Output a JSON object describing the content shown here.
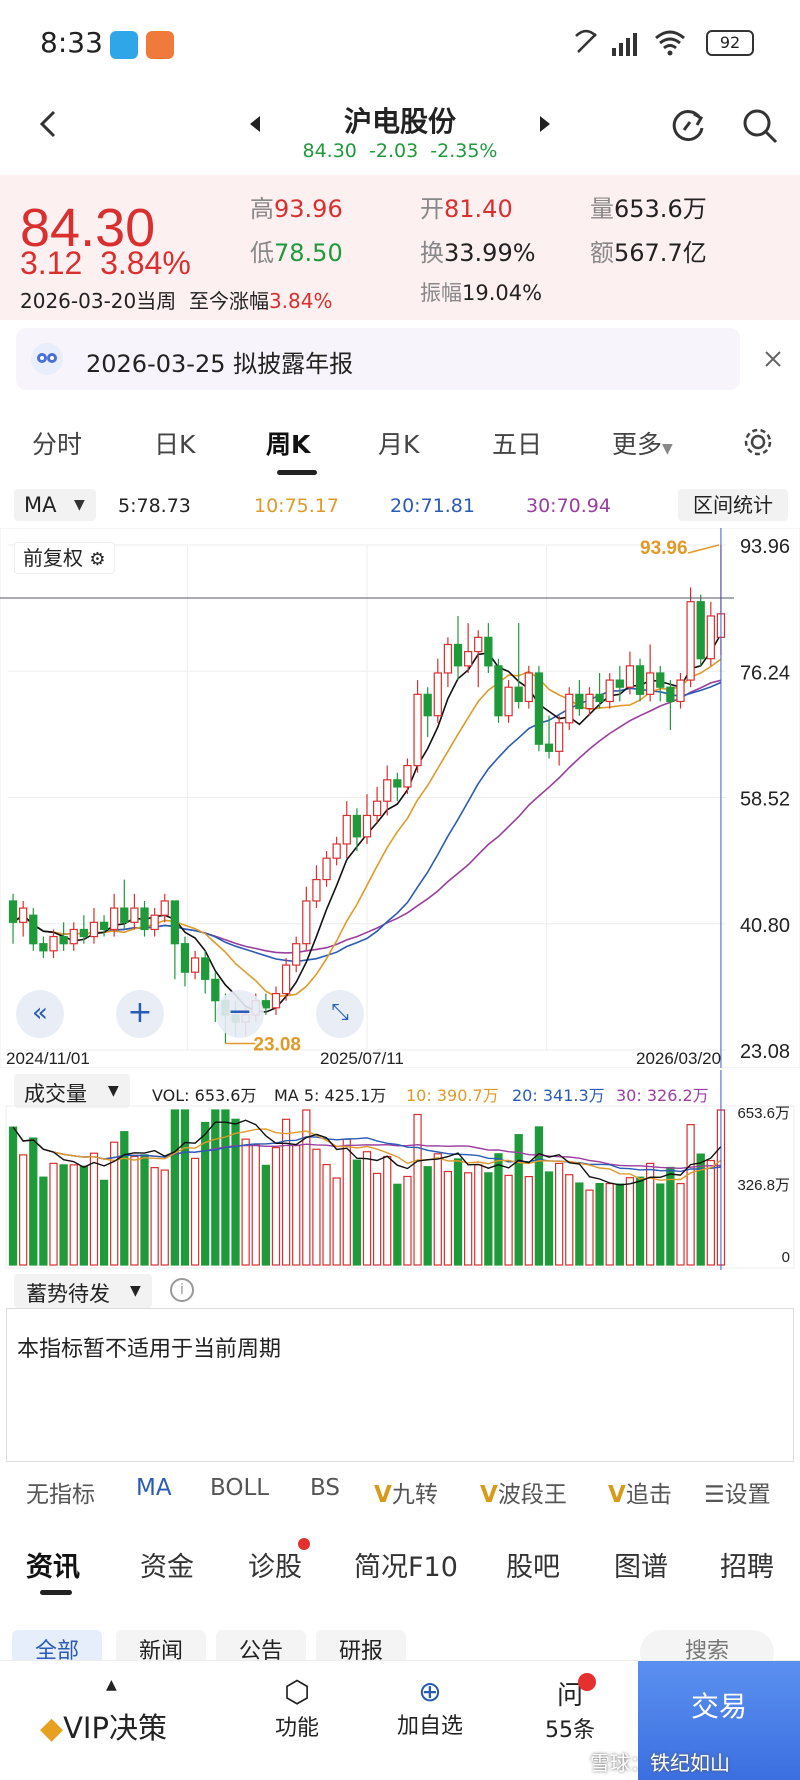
{
  "status": {
    "time": "8:33",
    "battery": "92"
  },
  "nav": {
    "title": "沪电股份",
    "price": "84.30",
    "change": "-2.03",
    "change_pct": "-2.35%"
  },
  "quote": {
    "price": "84.30",
    "change": "3.12",
    "change_pct": "3.84%",
    "period": "2026-03-20当周",
    "since_label": "至今涨幅",
    "since_value": "3.84%",
    "high_label": "高",
    "high": "93.96",
    "low_label": "低",
    "low": "78.50",
    "open_label": "开",
    "open": "81.40",
    "turnover_label": "换",
    "turnover": "33.99%",
    "amplitude_label": "振幅",
    "amplitude": "19.04%",
    "volume_label": "量",
    "volume": "653.6万",
    "amount_label": "额",
    "amount": "567.7亿"
  },
  "notice": {
    "text": "2026-03-25 拟披露年报"
  },
  "tabs": [
    "分时",
    "日K",
    "周K",
    "月K",
    "五日",
    "更多"
  ],
  "ma": {
    "label": "MA",
    "ma5": "5:78.73",
    "ma10": "10:75.17",
    "ma20": "20:71.81",
    "ma30": "30:70.94",
    "range_stats": "区间统计"
  },
  "chart": {
    "adjust": "前复权",
    "y_ticks": [
      "93.96",
      "76.24",
      "58.52",
      "40.80",
      "23.08"
    ],
    "x_ticks": [
      "2024/11/01",
      "2025/07/11",
      "2026/03/20"
    ],
    "max_label": "93.96",
    "min_label": "23.08"
  },
  "volume": {
    "label": "成交量",
    "vol": "VOL: 653.6万",
    "ma5": "MA 5: 425.1万",
    "ma10": "10: 390.7万",
    "ma20": "20: 341.3万",
    "ma30": "30: 326.2万",
    "y_ticks": [
      "653.6万",
      "326.8万",
      "0"
    ]
  },
  "indicator": {
    "label": "蓄势待发",
    "message": "本指标暂不适用于当前周期"
  },
  "indicator_tabs": [
    "无指标",
    "MA",
    "BOLL",
    "BS",
    "九转",
    "波段王",
    "追击",
    "设置"
  ],
  "info_tabs": [
    "资讯",
    "资金",
    "诊股",
    "简况F10",
    "股吧",
    "图谱",
    "招聘"
  ],
  "sub_tabs": [
    "全部",
    "新闻",
    "公告",
    "研报",
    "搜索"
  ],
  "bottom": {
    "vip": "VIP决策",
    "func": "功能",
    "watch": "加自选",
    "ask": "55条",
    "trade": "交易",
    "watermark": "雪球：铁纪如山"
  },
  "chart_data": {
    "type": "candlestick",
    "x_range": [
      "2024/11/01",
      "2026/03/20"
    ],
    "ylim": [
      23.08,
      93.96
    ],
    "candles": [
      {
        "o": 44,
        "c": 41,
        "h": 45,
        "l": 38
      },
      {
        "o": 41,
        "c": 43,
        "h": 44,
        "l": 39
      },
      {
        "o": 42,
        "c": 38,
        "h": 43,
        "l": 37
      },
      {
        "o": 38,
        "c": 37,
        "h": 39,
        "l": 36
      },
      {
        "o": 37,
        "c": 39,
        "h": 40,
        "l": 36
      },
      {
        "o": 39,
        "c": 38,
        "h": 41,
        "l": 37
      },
      {
        "o": 38,
        "c": 40,
        "h": 41,
        "l": 37
      },
      {
        "o": 40,
        "c": 39,
        "h": 42,
        "l": 38
      },
      {
        "o": 39,
        "c": 41,
        "h": 43,
        "l": 38
      },
      {
        "o": 41,
        "c": 40,
        "h": 42,
        "l": 39
      },
      {
        "o": 40,
        "c": 43,
        "h": 45,
        "l": 39
      },
      {
        "o": 43,
        "c": 41,
        "h": 47,
        "l": 40
      },
      {
        "o": 41,
        "c": 43,
        "h": 45,
        "l": 40
      },
      {
        "o": 43,
        "c": 40,
        "h": 44,
        "l": 39
      },
      {
        "o": 40,
        "c": 42,
        "h": 43,
        "l": 39
      },
      {
        "o": 42,
        "c": 44,
        "h": 45,
        "l": 41
      },
      {
        "o": 44,
        "c": 38,
        "h": 44,
        "l": 33
      },
      {
        "o": 38,
        "c": 34,
        "h": 39,
        "l": 32
      },
      {
        "o": 34,
        "c": 36,
        "h": 37,
        "l": 33
      },
      {
        "o": 36,
        "c": 33,
        "h": 37,
        "l": 31
      },
      {
        "o": 33,
        "c": 30,
        "h": 34,
        "l": 27
      },
      {
        "o": 30,
        "c": 28,
        "h": 31,
        "l": 24
      },
      {
        "o": 28,
        "c": 27,
        "h": 30,
        "l": 25
      },
      {
        "o": 27,
        "c": 28,
        "h": 29,
        "l": 25
      },
      {
        "o": 28,
        "c": 30,
        "h": 31,
        "l": 27
      },
      {
        "o": 30,
        "c": 29,
        "h": 31,
        "l": 28
      },
      {
        "o": 29,
        "c": 31,
        "h": 32,
        "l": 28
      },
      {
        "o": 31,
        "c": 35,
        "h": 36,
        "l": 30
      },
      {
        "o": 35,
        "c": 38,
        "h": 39,
        "l": 34
      },
      {
        "o": 38,
        "c": 44,
        "h": 46,
        "l": 37
      },
      {
        "o": 44,
        "c": 47,
        "h": 49,
        "l": 43
      },
      {
        "o": 47,
        "c": 50,
        "h": 51,
        "l": 46
      },
      {
        "o": 50,
        "c": 52,
        "h": 53,
        "l": 49
      },
      {
        "o": 52,
        "c": 56,
        "h": 58,
        "l": 50
      },
      {
        "o": 56,
        "c": 53,
        "h": 57,
        "l": 51
      },
      {
        "o": 53,
        "c": 56,
        "h": 59,
        "l": 52
      },
      {
        "o": 56,
        "c": 58,
        "h": 60,
        "l": 55
      },
      {
        "o": 58,
        "c": 61,
        "h": 63,
        "l": 56
      },
      {
        "o": 61,
        "c": 60,
        "h": 62,
        "l": 58
      },
      {
        "o": 60,
        "c": 63,
        "h": 64,
        "l": 59
      },
      {
        "o": 63,
        "c": 73,
        "h": 75,
        "l": 62
      },
      {
        "o": 73,
        "c": 70,
        "h": 74,
        "l": 67
      },
      {
        "o": 70,
        "c": 76,
        "h": 78,
        "l": 69
      },
      {
        "o": 76,
        "c": 80,
        "h": 81,
        "l": 74
      },
      {
        "o": 80,
        "c": 77,
        "h": 84,
        "l": 75
      },
      {
        "o": 77,
        "c": 79,
        "h": 83,
        "l": 76
      },
      {
        "o": 79,
        "c": 81,
        "h": 82,
        "l": 74
      },
      {
        "o": 81,
        "c": 77,
        "h": 83,
        "l": 76
      },
      {
        "o": 77,
        "c": 70,
        "h": 78,
        "l": 69
      },
      {
        "o": 70,
        "c": 74,
        "h": 75,
        "l": 69
      },
      {
        "o": 74,
        "c": 72,
        "h": 83,
        "l": 71
      },
      {
        "o": 72,
        "c": 76,
        "h": 77,
        "l": 71
      },
      {
        "o": 76,
        "c": 66,
        "h": 77,
        "l": 65
      },
      {
        "o": 66,
        "c": 65,
        "h": 70,
        "l": 64
      },
      {
        "o": 65,
        "c": 69,
        "h": 70,
        "l": 63
      },
      {
        "o": 69,
        "c": 73,
        "h": 74,
        "l": 68
      },
      {
        "o": 73,
        "c": 71,
        "h": 75,
        "l": 70
      },
      {
        "o": 71,
        "c": 73,
        "h": 74,
        "l": 70
      },
      {
        "o": 73,
        "c": 72,
        "h": 76,
        "l": 71
      },
      {
        "o": 72,
        "c": 75,
        "h": 76,
        "l": 71
      },
      {
        "o": 75,
        "c": 74,
        "h": 77,
        "l": 72
      },
      {
        "o": 74,
        "c": 77,
        "h": 79,
        "l": 73
      },
      {
        "o": 77,
        "c": 73,
        "h": 78,
        "l": 72
      },
      {
        "o": 73,
        "c": 76,
        "h": 80,
        "l": 72
      },
      {
        "o": 76,
        "c": 74,
        "h": 77,
        "l": 72
      },
      {
        "o": 74,
        "c": 72,
        "h": 75,
        "l": 68
      },
      {
        "o": 72,
        "c": 75,
        "h": 76,
        "l": 71
      },
      {
        "o": 75,
        "c": 86,
        "h": 88,
        "l": 74
      },
      {
        "o": 86,
        "c": 78,
        "h": 87,
        "l": 77
      },
      {
        "o": 78,
        "c": 84,
        "h": 86,
        "l": 77
      },
      {
        "o": 81,
        "c": 84.3,
        "h": 93.96,
        "l": 78.5
      }
    ]
  }
}
